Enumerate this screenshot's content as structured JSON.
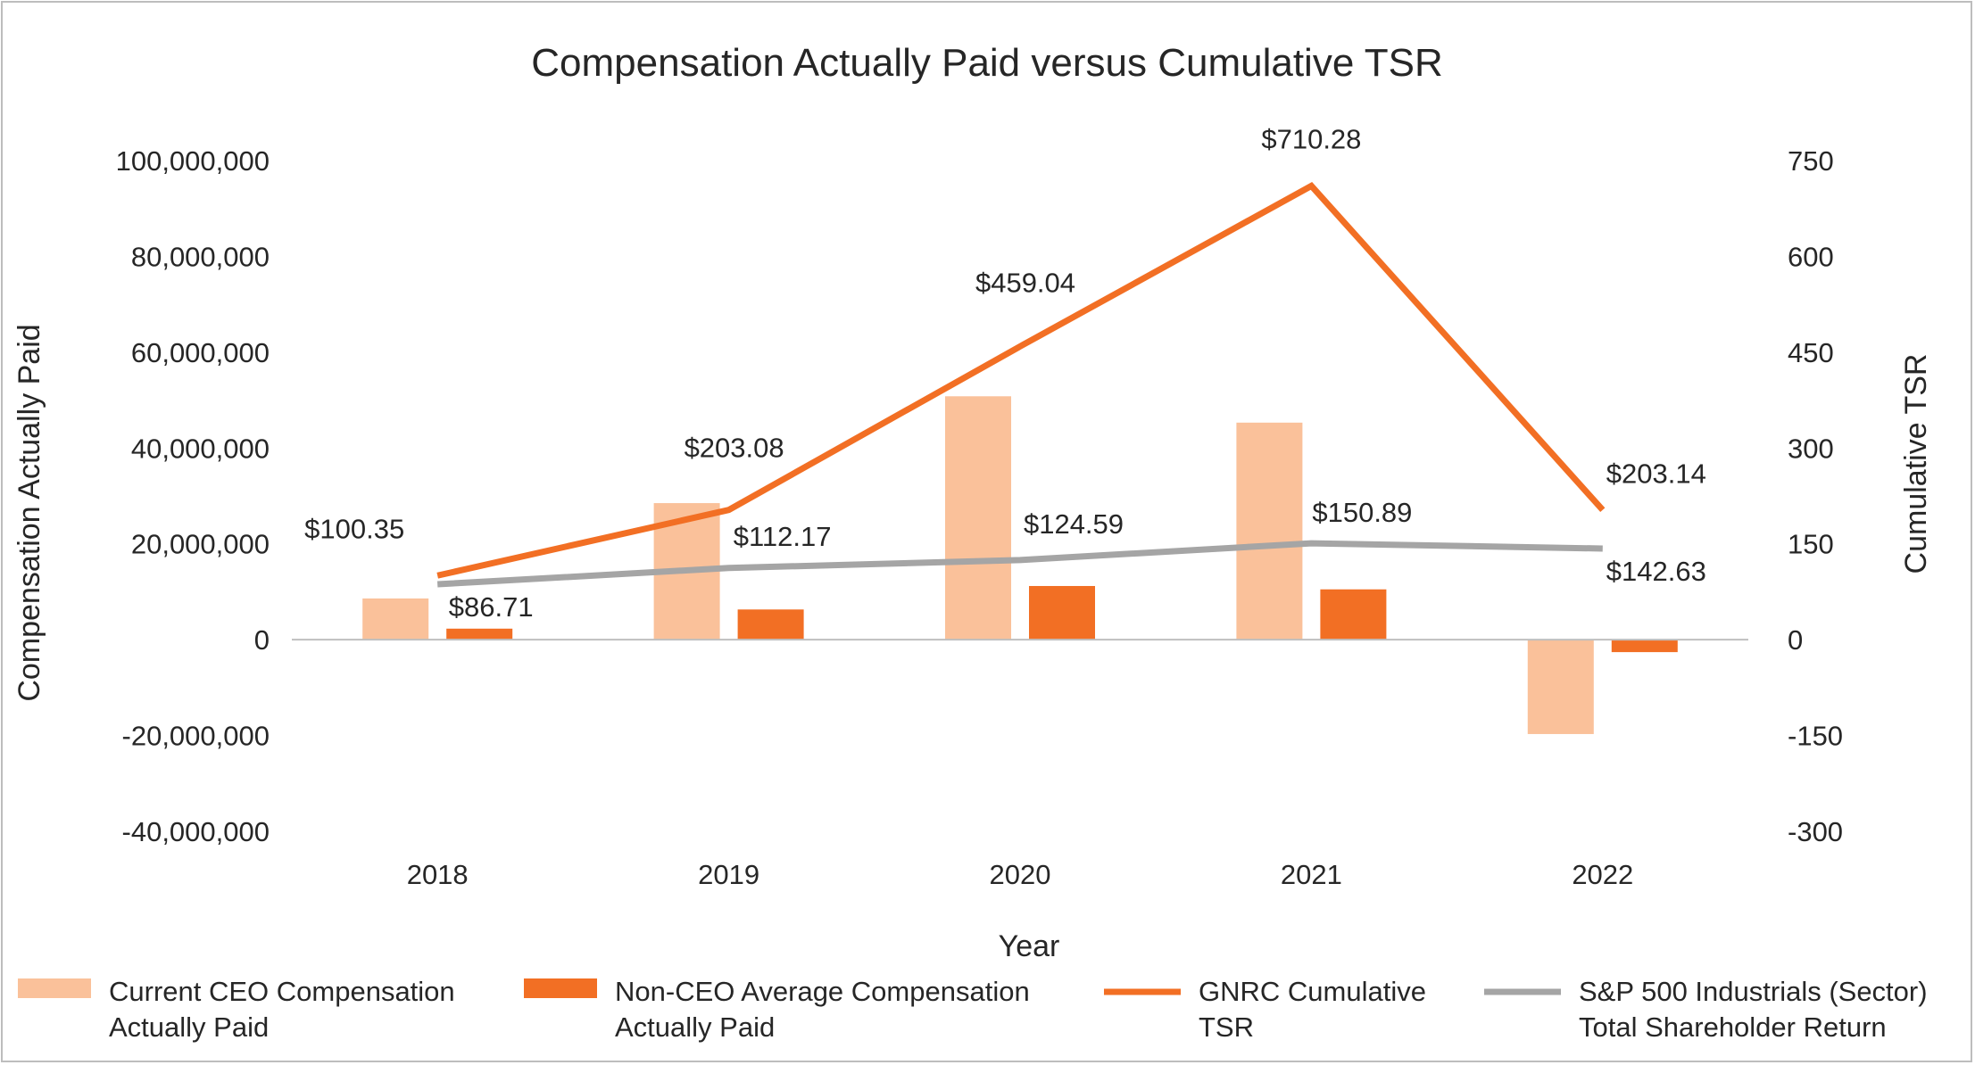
{
  "chart_data": {
    "type": "bar+line",
    "title": "Compensation Actually Paid versus Cumulative TSR",
    "xlabel": "Year",
    "ylabel_left": "Compensation Actually Paid",
    "ylabel_right": "Cumulative TSR",
    "categories": [
      "2018",
      "2019",
      "2020",
      "2021",
      "2022"
    ],
    "ylim_left": [
      -40000000,
      100000000
    ],
    "ylim_right": [
      -300,
      750
    ],
    "left_ticks": [
      {
        "value": 100000000,
        "label": "100,000,000"
      },
      {
        "value": 80000000,
        "label": "80,000,000"
      },
      {
        "value": 60000000,
        "label": "60,000,000"
      },
      {
        "value": 40000000,
        "label": "40,000,000"
      },
      {
        "value": 20000000,
        "label": "20,000,000"
      },
      {
        "value": 0,
        "label": "0"
      },
      {
        "value": -20000000,
        "label": "-20,000,000"
      },
      {
        "value": -40000000,
        "label": "-40,000,000"
      }
    ],
    "right_ticks": [
      {
        "value": 750,
        "label": "750"
      },
      {
        "value": 600,
        "label": "600"
      },
      {
        "value": 450,
        "label": "450"
      },
      {
        "value": 300,
        "label": "300"
      },
      {
        "value": 150,
        "label": "150"
      },
      {
        "value": 0,
        "label": "0"
      },
      {
        "value": -150,
        "label": "-150"
      },
      {
        "value": -300,
        "label": "-300"
      }
    ],
    "bar_series": [
      {
        "name": "Current CEO Compensation Actually Paid",
        "legend_lines": [
          "Current CEO Compensation",
          "Actually Paid"
        ],
        "color": "#fac19a",
        "axis": "left",
        "values": [
          8600000,
          28500000,
          50800000,
          45300000,
          -19700000
        ]
      },
      {
        "name": "Non-CEO Average Compensation Actually Paid",
        "legend_lines": [
          "Non-CEO Average Compensation",
          "Actually Paid"
        ],
        "color": "#f26f24",
        "axis": "left",
        "values": [
          2300000,
          6300000,
          11200000,
          10500000,
          -2600000
        ]
      }
    ],
    "line_series": [
      {
        "name": "GNRC Cumulative TSR",
        "legend_lines": [
          "GNRC Cumulative",
          "TSR"
        ],
        "color": "#f26f24",
        "axis": "right",
        "values": [
          100.35,
          203.08,
          459.04,
          710.28,
          203.14
        ],
        "labels": [
          "$100.35",
          "$203.08",
          "$459.04",
          "$710.28",
          "$203.14"
        ]
      },
      {
        "name": "S&P 500 Industrials (Sector) Total Shareholder Return",
        "legend_lines": [
          "S&P 500 Industrials (Sector)",
          "Total Shareholder Return"
        ],
        "color": "#a5a5a5",
        "axis": "right",
        "values": [
          86.71,
          112.17,
          124.59,
          150.89,
          142.63
        ],
        "labels": [
          "$86.71",
          "$112.17",
          "$124.59",
          "$150.89",
          "$142.63"
        ]
      }
    ],
    "legend_position": "bottom"
  }
}
